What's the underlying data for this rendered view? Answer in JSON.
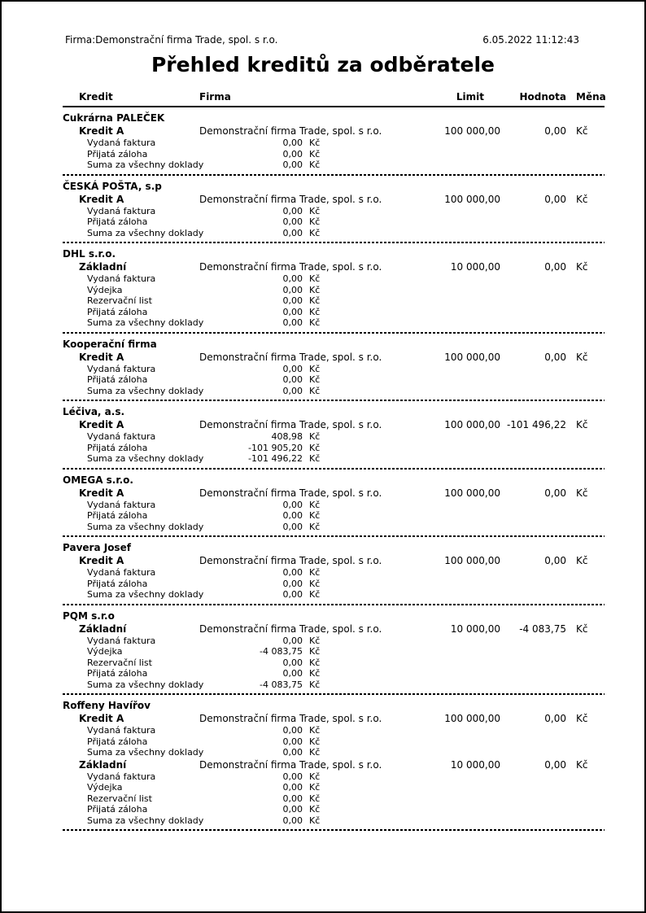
{
  "meta": {
    "company_line": "Firma:Demonstrační firma Trade, spol. s r.o.",
    "datetime": "6.05.2022 11:12:43"
  },
  "title": "Přehled kreditů za odběratele",
  "columns": {
    "kredit": "Kredit",
    "firma": "Firma",
    "limit": "Limit",
    "hodnota": "Hodnota",
    "mena": "Měna"
  },
  "sections": [
    {
      "customer": "Cukrárna PALEČEK",
      "credits": [
        {
          "name": "Kredit A",
          "firma": "Demonstrační firma Trade, spol. s r.o.",
          "limit": "100 000,00",
          "hodnota": "0,00",
          "mena": "Kč",
          "lines": [
            {
              "label": "Vydaná faktura",
              "value": "0,00",
              "currency": "Kč"
            },
            {
              "label": "Přijatá záloha",
              "value": "0,00",
              "currency": "Kč"
            },
            {
              "label": "Suma za všechny doklady",
              "value": "0,00",
              "currency": "Kč"
            }
          ]
        }
      ]
    },
    {
      "customer": "ČESKÁ POŠTA, s.p",
      "credits": [
        {
          "name": "Kredit A",
          "firma": "Demonstrační firma Trade, spol. s r.o.",
          "limit": "100 000,00",
          "hodnota": "0,00",
          "mena": "Kč",
          "lines": [
            {
              "label": "Vydaná faktura",
              "value": "0,00",
              "currency": "Kč"
            },
            {
              "label": "Přijatá záloha",
              "value": "0,00",
              "currency": "Kč"
            },
            {
              "label": "Suma za všechny doklady",
              "value": "0,00",
              "currency": "Kč"
            }
          ]
        }
      ]
    },
    {
      "customer": "DHL s.r.o.",
      "credits": [
        {
          "name": "Základní",
          "firma": "Demonstrační firma Trade, spol. s r.o.",
          "limit": "10 000,00",
          "hodnota": "0,00",
          "mena": "Kč",
          "lines": [
            {
              "label": "Vydaná faktura",
              "value": "0,00",
              "currency": "Kč"
            },
            {
              "label": "Výdejka",
              "value": "0,00",
              "currency": "Kč"
            },
            {
              "label": "Rezervační list",
              "value": "0,00",
              "currency": "Kč"
            },
            {
              "label": "Přijatá záloha",
              "value": "0,00",
              "currency": "Kč"
            },
            {
              "label": "Suma za všechny doklady",
              "value": "0,00",
              "currency": "Kč"
            }
          ]
        }
      ]
    },
    {
      "customer": "Kooperační firma",
      "credits": [
        {
          "name": "Kredit A",
          "firma": "Demonstrační firma Trade, spol. s r.o.",
          "limit": "100 000,00",
          "hodnota": "0,00",
          "mena": "Kč",
          "lines": [
            {
              "label": "Vydaná faktura",
              "value": "0,00",
              "currency": "Kč"
            },
            {
              "label": "Přijatá záloha",
              "value": "0,00",
              "currency": "Kč"
            },
            {
              "label": "Suma za všechny doklady",
              "value": "0,00",
              "currency": "Kč"
            }
          ]
        }
      ]
    },
    {
      "customer": "Léčiva, a.s.",
      "credits": [
        {
          "name": "Kredit A",
          "firma": "Demonstrační firma Trade, spol. s r.o.",
          "limit": "100 000,00",
          "hodnota": "-101 496,22",
          "mena": "Kč",
          "lines": [
            {
              "label": "Vydaná faktura",
              "value": "408,98",
              "currency": "Kč"
            },
            {
              "label": "Přijatá záloha",
              "value": "-101 905,20",
              "currency": "Kč"
            },
            {
              "label": "Suma za všechny doklady",
              "value": "-101 496,22",
              "currency": "Kč"
            }
          ]
        }
      ]
    },
    {
      "customer": "OMEGA s.r.o.",
      "credits": [
        {
          "name": "Kredit A",
          "firma": "Demonstrační firma Trade, spol. s r.o.",
          "limit": "100 000,00",
          "hodnota": "0,00",
          "mena": "Kč",
          "lines": [
            {
              "label": "Vydaná faktura",
              "value": "0,00",
              "currency": "Kč"
            },
            {
              "label": "Přijatá záloha",
              "value": "0,00",
              "currency": "Kč"
            },
            {
              "label": "Suma za všechny doklady",
              "value": "0,00",
              "currency": "Kč"
            }
          ]
        }
      ]
    },
    {
      "customer": "Pavera Josef",
      "credits": [
        {
          "name": "Kredit A",
          "firma": "Demonstrační firma Trade, spol. s r.o.",
          "limit": "100 000,00",
          "hodnota": "0,00",
          "mena": "Kč",
          "lines": [
            {
              "label": "Vydaná faktura",
              "value": "0,00",
              "currency": "Kč"
            },
            {
              "label": "Přijatá záloha",
              "value": "0,00",
              "currency": "Kč"
            },
            {
              "label": "Suma za všechny doklady",
              "value": "0,00",
              "currency": "Kč"
            }
          ]
        }
      ]
    },
    {
      "customer": "PQM s.r.o",
      "credits": [
        {
          "name": "Základní",
          "firma": "Demonstrační firma Trade, spol. s r.o.",
          "limit": "10 000,00",
          "hodnota": "-4 083,75",
          "mena": "Kč",
          "lines": [
            {
              "label": "Vydaná faktura",
              "value": "0,00",
              "currency": "Kč"
            },
            {
              "label": "Výdejka",
              "value": "-4 083,75",
              "currency": "Kč"
            },
            {
              "label": "Rezervační list",
              "value": "0,00",
              "currency": "Kč"
            },
            {
              "label": "Přijatá záloha",
              "value": "0,00",
              "currency": "Kč"
            },
            {
              "label": "Suma za všechny doklady",
              "value": "-4 083,75",
              "currency": "Kč"
            }
          ]
        }
      ]
    },
    {
      "customer": "Roffeny Havířov",
      "credits": [
        {
          "name": "Kredit A",
          "firma": "Demonstrační firma Trade, spol. s r.o.",
          "limit": "100 000,00",
          "hodnota": "0,00",
          "mena": "Kč",
          "lines": [
            {
              "label": "Vydaná faktura",
              "value": "0,00",
              "currency": "Kč"
            },
            {
              "label": "Přijatá záloha",
              "value": "0,00",
              "currency": "Kč"
            },
            {
              "label": "Suma za všechny doklady",
              "value": "0,00",
              "currency": "Kč"
            }
          ]
        },
        {
          "name": "Základní",
          "firma": "Demonstrační firma Trade, spol. s r.o.",
          "limit": "10 000,00",
          "hodnota": "0,00",
          "mena": "Kč",
          "lines": [
            {
              "label": "Vydaná faktura",
              "value": "0,00",
              "currency": "Kč"
            },
            {
              "label": "Výdejka",
              "value": "0,00",
              "currency": "Kč"
            },
            {
              "label": "Rezervační list",
              "value": "0,00",
              "currency": "Kč"
            },
            {
              "label": "Přijatá záloha",
              "value": "0,00",
              "currency": "Kč"
            },
            {
              "label": "Suma za všechny doklady",
              "value": "0,00",
              "currency": "Kč"
            }
          ]
        }
      ]
    }
  ]
}
